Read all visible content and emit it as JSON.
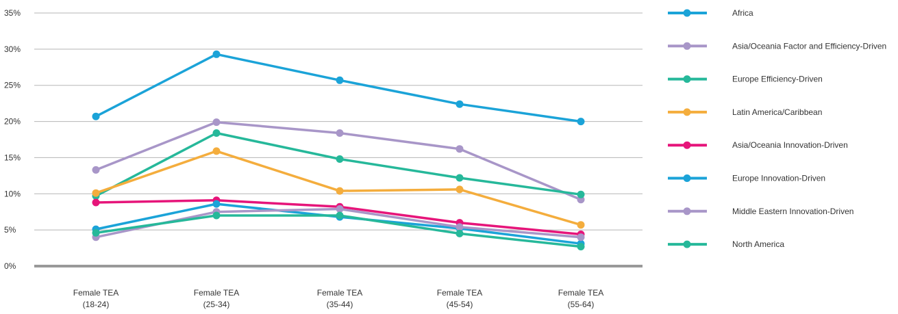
{
  "chart_data": {
    "type": "line",
    "title": "",
    "xlabel": "",
    "ylabel": "",
    "ylim": [
      0,
      35
    ],
    "yticks": [
      "0%",
      "5%",
      "10%",
      "15%",
      "20%",
      "25%",
      "30%",
      "35%"
    ],
    "categories": [
      [
        "Female TEA",
        "(18-24)"
      ],
      [
        "Female TEA",
        "(25-34)"
      ],
      [
        "Female TEA",
        "(35-44)"
      ],
      [
        "Female TEA",
        "(45-54)"
      ],
      [
        "Female TEA",
        "(55-64)"
      ]
    ],
    "grid": true,
    "legend_position": "right",
    "series": [
      {
        "name": "Africa",
        "color": "#1ba3d8",
        "values": [
          20.7,
          29.3,
          25.7,
          22.4,
          20.0
        ]
      },
      {
        "name": "Asia/Oceania Factor and Efficiency-Driven",
        "color": "#a896c8",
        "values": [
          13.3,
          19.9,
          18.4,
          16.2,
          9.2
        ]
      },
      {
        "name": "Europe Efficiency-Driven",
        "color": "#26b89a",
        "values": [
          9.7,
          18.4,
          14.8,
          12.2,
          9.9
        ]
      },
      {
        "name": "Latin America/Caribbean",
        "color": "#f4ad3d",
        "values": [
          10.1,
          15.9,
          10.4,
          10.6,
          5.7
        ]
      },
      {
        "name": "Asia/Oceania Innovation-Driven",
        "color": "#e6157a",
        "values": [
          8.8,
          9.1,
          8.2,
          6.0,
          4.4
        ]
      },
      {
        "name": "Europe Innovation-Driven",
        "color": "#1ba3d8",
        "values": [
          5.1,
          8.6,
          6.8,
          5.2,
          3.1
        ]
      },
      {
        "name": "Middle Eastern Innovation-Driven",
        "color": "#a896c8",
        "values": [
          4.0,
          7.5,
          7.9,
          5.4,
          4.0
        ]
      },
      {
        "name": "North America",
        "color": "#26b89a",
        "values": [
          4.6,
          7.0,
          7.0,
          4.5,
          2.7
        ]
      }
    ]
  }
}
